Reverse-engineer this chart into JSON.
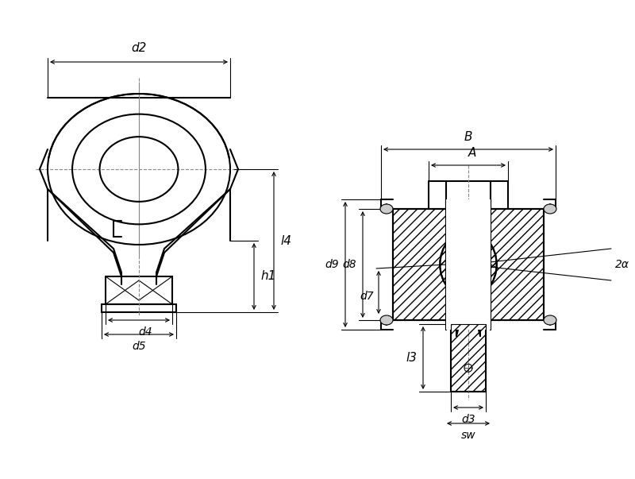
{
  "bg_color": "#ffffff",
  "line_color": "#000000",
  "hatch_color": "#000000",
  "dim_color": "#000000",
  "centerline_color": "#555555",
  "fig_width": 8.0,
  "fig_height": 6.03,
  "labels": {
    "d2": "d2",
    "d4": "d4",
    "d5": "d5",
    "h1": "h1",
    "l4": "l4",
    "d9": "d9",
    "d8": "d8",
    "d7": "d7",
    "d3": "d3",
    "l3": "l3",
    "sw": "sw",
    "A": "A",
    "B": "B",
    "2a": "2α"
  }
}
